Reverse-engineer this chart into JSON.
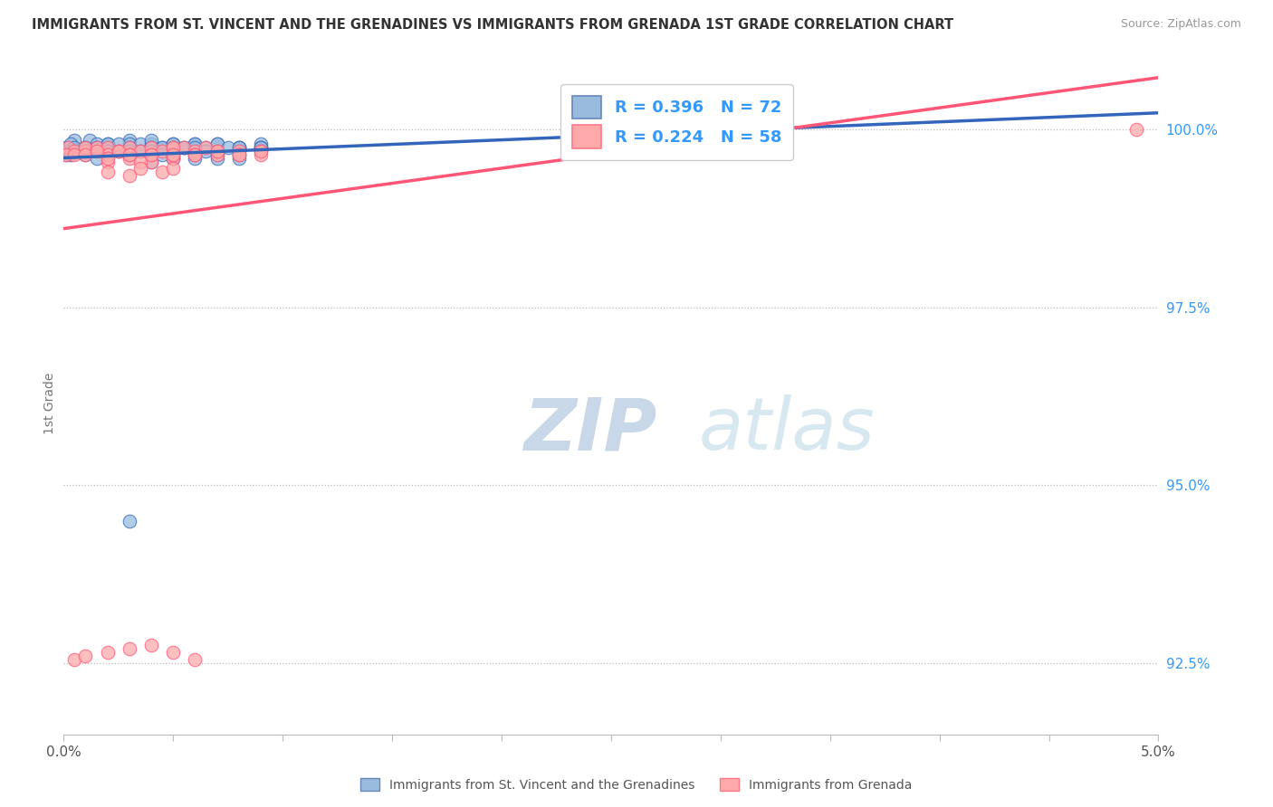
{
  "title": "IMMIGRANTS FROM ST. VINCENT AND THE GRENADINES VS IMMIGRANTS FROM GRENADA 1ST GRADE CORRELATION CHART",
  "source": "Source: ZipAtlas.com",
  "R_blue": 0.396,
  "N_blue": 72,
  "R_pink": 0.224,
  "N_pink": 58,
  "color_blue": "#99BBDD",
  "color_pink": "#FFAAAA",
  "color_line_blue": "#3366BB",
  "color_line_pink": "#FF5577",
  "legend_label_blue": "Immigrants from St. Vincent and the Grenadines",
  "legend_label_pink": "Immigrants from Grenada",
  "ylabel": "1st Grade",
  "xmin": 0.0,
  "xmax": 0.05,
  "ymin": 0.915,
  "ymax": 1.008,
  "yticks": [
    0.925,
    0.95,
    0.975,
    1.0
  ],
  "ytick_labels": [
    "92.5%",
    "95.0%",
    "97.5%",
    "100.0%"
  ],
  "blue_x": [
    0.0005,
    0.001,
    0.0012,
    0.0015,
    0.002,
    0.002,
    0.002,
    0.0025,
    0.003,
    0.003,
    0.003,
    0.0035,
    0.004,
    0.004,
    0.004,
    0.004,
    0.0045,
    0.005,
    0.005,
    0.005,
    0.0055,
    0.006,
    0.006,
    0.0065,
    0.007,
    0.007,
    0.008,
    0.008,
    0.009,
    0.009,
    0.0001,
    0.0002,
    0.0003,
    0.0005,
    0.001,
    0.0015,
    0.002,
    0.0025,
    0.003,
    0.0035,
    0.004,
    0.0045,
    0.005,
    0.0055,
    0.006,
    0.0065,
    0.007,
    0.0075,
    0.008,
    0.009,
    0.0001,
    0.0003,
    0.001,
    0.002,
    0.003,
    0.004,
    0.005,
    0.006,
    0.007,
    0.008,
    0.005,
    0.009,
    0.0015,
    0.003,
    0.004,
    0.005,
    0.006,
    0.007,
    0.008,
    0.0045,
    0.003,
    0.006
  ],
  "blue_y": [
    0.9985,
    0.9975,
    0.9985,
    0.998,
    0.998,
    0.9975,
    0.9965,
    0.997,
    0.9985,
    0.998,
    0.997,
    0.998,
    0.998,
    0.9975,
    0.9985,
    0.997,
    0.9975,
    0.998,
    0.9975,
    0.997,
    0.9975,
    0.9975,
    0.998,
    0.9975,
    0.998,
    0.997,
    0.9975,
    0.9975,
    0.9975,
    0.998,
    0.9975,
    0.997,
    0.998,
    0.9975,
    0.9975,
    0.9975,
    0.998,
    0.998,
    0.9975,
    0.997,
    0.9975,
    0.9975,
    0.998,
    0.9975,
    0.998,
    0.997,
    0.998,
    0.9975,
    0.9975,
    0.9975,
    0.9965,
    0.9965,
    0.9965,
    0.997,
    0.9965,
    0.997,
    0.9965,
    0.9965,
    0.9965,
    0.9965,
    0.996,
    0.9975,
    0.996,
    0.997,
    0.9955,
    0.996,
    0.996,
    0.996,
    0.996,
    0.9965,
    0.945,
    0.9975
  ],
  "pink_x": [
    0.0002,
    0.0005,
    0.001,
    0.001,
    0.0015,
    0.002,
    0.002,
    0.0025,
    0.003,
    0.003,
    0.0035,
    0.004,
    0.004,
    0.0045,
    0.005,
    0.005,
    0.0055,
    0.006,
    0.006,
    0.0065,
    0.007,
    0.007,
    0.008,
    0.008,
    0.009,
    0.009,
    0.002,
    0.003,
    0.004,
    0.005,
    0.0001,
    0.0005,
    0.001,
    0.0015,
    0.002,
    0.0025,
    0.003,
    0.0035,
    0.004,
    0.005,
    0.005,
    0.006,
    0.007,
    0.008,
    0.009,
    0.002,
    0.003,
    0.0035,
    0.0045,
    0.005,
    0.0005,
    0.001,
    0.002,
    0.003,
    0.004,
    0.005,
    0.006,
    0.049
  ],
  "pink_y": [
    0.9975,
    0.997,
    0.997,
    0.9975,
    0.9975,
    0.9975,
    0.9965,
    0.997,
    0.9975,
    0.9965,
    0.997,
    0.9975,
    0.9965,
    0.997,
    0.9975,
    0.9965,
    0.9975,
    0.997,
    0.9965,
    0.9975,
    0.997,
    0.9965,
    0.997,
    0.9965,
    0.997,
    0.9965,
    0.9955,
    0.996,
    0.9955,
    0.996,
    0.9965,
    0.9965,
    0.9965,
    0.997,
    0.996,
    0.997,
    0.9965,
    0.9955,
    0.9965,
    0.9975,
    0.9965,
    0.9965,
    0.997,
    0.9965,
    0.997,
    0.994,
    0.9935,
    0.9945,
    0.994,
    0.9945,
    0.9255,
    0.926,
    0.9265,
    0.927,
    0.9275,
    0.9265,
    0.9255,
    1.0
  ]
}
